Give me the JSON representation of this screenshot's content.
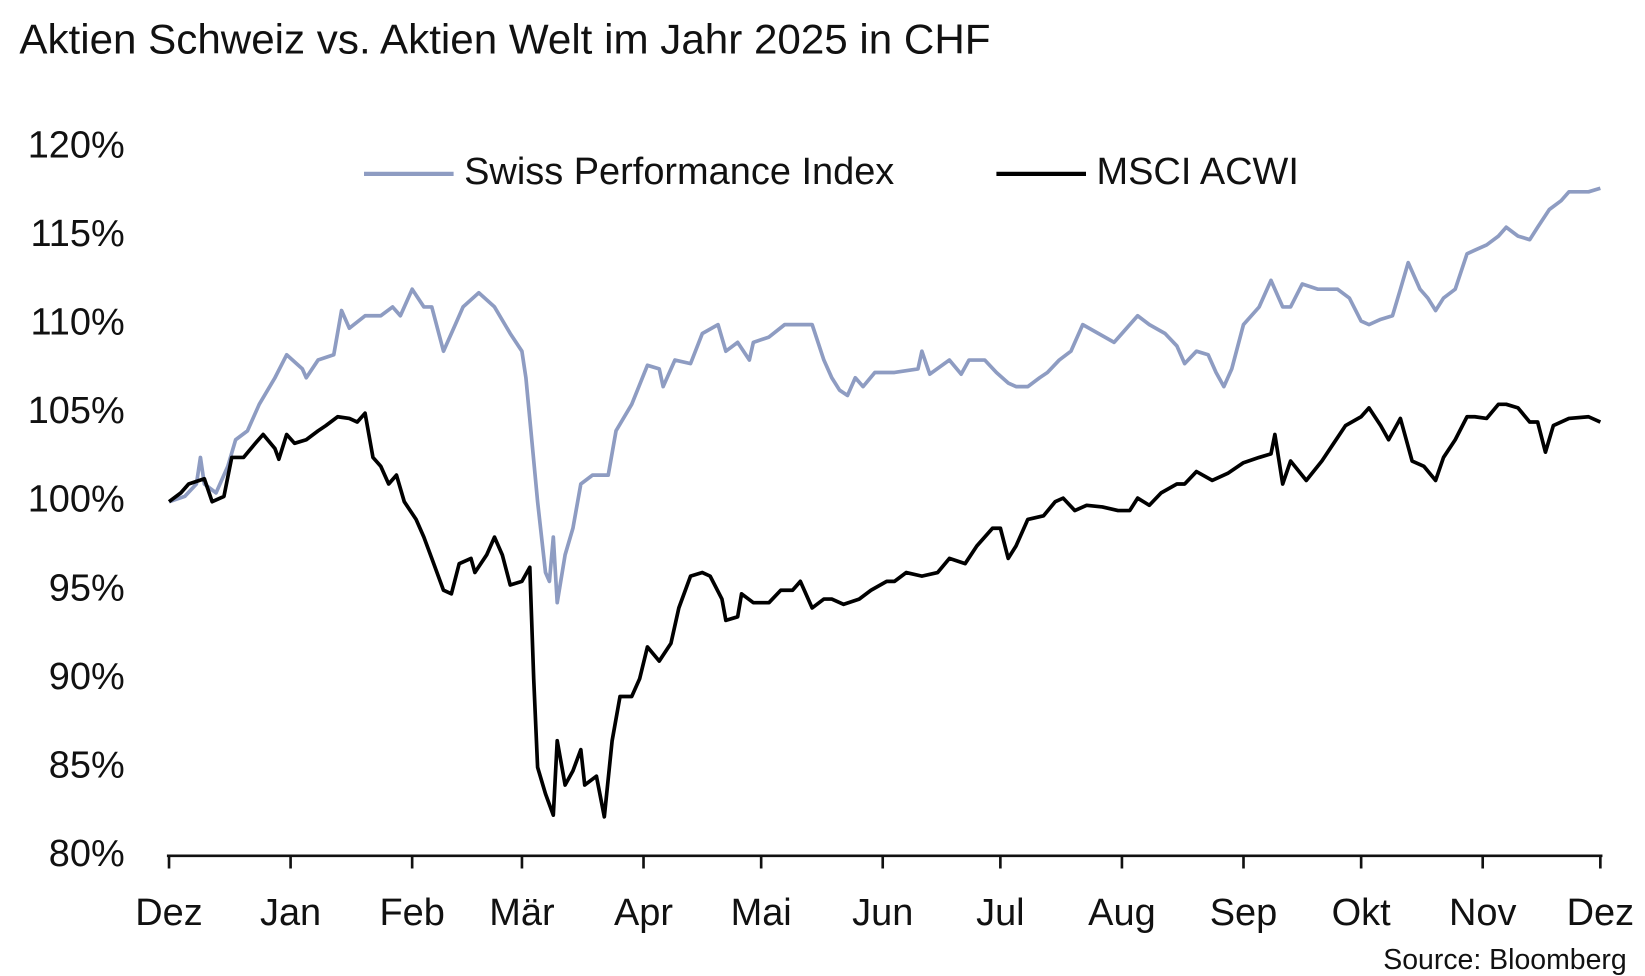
{
  "chart_data": {
    "type": "line",
    "title": "Aktien Schweiz vs. Aktien Welt im Jahr 2025 in CHF",
    "source": "Source: Bloomberg",
    "xlim": [
      0,
      365
    ],
    "xticks": [
      {
        "value": 0,
        "label": "Dez"
      },
      {
        "value": 31,
        "label": "Jan"
      },
      {
        "value": 62,
        "label": "Feb"
      },
      {
        "value": 90,
        "label": "Mär"
      },
      {
        "value": 121,
        "label": "Apr"
      },
      {
        "value": 151,
        "label": "Mai"
      },
      {
        "value": 182,
        "label": "Jun"
      },
      {
        "value": 212,
        "label": "Jul"
      },
      {
        "value": 243,
        "label": "Aug"
      },
      {
        "value": 274,
        "label": "Sep"
      },
      {
        "value": 304,
        "label": "Okt"
      },
      {
        "value": 335,
        "label": "Nov"
      },
      {
        "value": 365,
        "label": "Dez"
      }
    ],
    "ylim": [
      80,
      120
    ],
    "yticks": [
      {
        "value": 80,
        "label": "80%"
      },
      {
        "value": 85,
        "label": "85%"
      },
      {
        "value": 90,
        "label": "90%"
      },
      {
        "value": 95,
        "label": "95%"
      },
      {
        "value": 100,
        "label": "100%"
      },
      {
        "value": 105,
        "label": "105%"
      },
      {
        "value": 110,
        "label": "110%"
      },
      {
        "value": 115,
        "label": "115%"
      },
      {
        "value": 120,
        "label": "120%"
      }
    ],
    "grid": false,
    "legend": "top",
    "series": [
      {
        "name": "Swiss Performance Index",
        "color": "#8e9cc2",
        "x": [
          0,
          4,
          7,
          8,
          9,
          12,
          15,
          17,
          20,
          23,
          27,
          30,
          34,
          35,
          38,
          42,
          44,
          46,
          50,
          54,
          57,
          59,
          62,
          65,
          67,
          70,
          73,
          75,
          79,
          83,
          87,
          90,
          91,
          94,
          96,
          97,
          98,
          99,
          101,
          103,
          105,
          108,
          112,
          114,
          118,
          122,
          125,
          126,
          129,
          133,
          136,
          140,
          142,
          145,
          148,
          149,
          153,
          157,
          164,
          167,
          169,
          171,
          173,
          175,
          177,
          180,
          185,
          191,
          192,
          194,
          199,
          202,
          204,
          208,
          211,
          214,
          216,
          219,
          222,
          224,
          227,
          230,
          233,
          237,
          241,
          243,
          247,
          250,
          254,
          257,
          259,
          262,
          265,
          267,
          269,
          271,
          274,
          278,
          281,
          284,
          286,
          289,
          293,
          298,
          301,
          304,
          306,
          309,
          312,
          314,
          316,
          319,
          321,
          323,
          325,
          328,
          331,
          333,
          336,
          339,
          341,
          344,
          347,
          349,
          352,
          355,
          357,
          362,
          365
        ],
        "values": [
          100,
          100.3,
          101,
          102.5,
          101,
          100.5,
          102,
          103.5,
          104,
          105.5,
          107,
          108.3,
          107.5,
          107,
          108,
          108.3,
          110.8,
          109.8,
          110.5,
          110.5,
          111,
          110.5,
          112,
          111,
          111,
          108.5,
          110,
          111,
          111.8,
          111,
          109.5,
          108.5,
          107,
          100,
          96,
          95.5,
          98,
          94.3,
          97,
          98.5,
          101,
          101.5,
          101.5,
          104,
          105.5,
          107.7,
          107.5,
          106.5,
          108,
          107.8,
          109.5,
          110,
          108.5,
          109,
          108,
          109,
          109.3,
          110,
          110,
          108,
          107,
          106.3,
          106,
          107,
          106.5,
          107.3,
          107.3,
          107.5,
          108.5,
          107.2,
          108,
          107.2,
          108,
          108,
          107.3,
          106.7,
          106.5,
          106.5,
          107,
          107.3,
          108,
          108.5,
          110,
          109.5,
          109,
          109.5,
          110.5,
          110,
          109.5,
          108.8,
          107.8,
          108.5,
          108.3,
          107.3,
          106.5,
          107.5,
          110,
          111,
          112.5,
          111,
          111,
          112.3,
          112,
          112,
          111.5,
          110.2,
          110,
          110.3,
          110.5,
          112,
          113.5,
          112,
          111.5,
          110.8,
          111.5,
          112,
          114,
          114.2,
          114.5,
          115,
          115.5,
          115,
          114.8,
          115.5,
          116.5,
          117,
          117.5,
          117.5,
          117.7
        ]
      },
      {
        "name": "MSCI ACWI",
        "color": "#000000",
        "x": [
          0,
          3,
          5,
          9,
          11,
          14,
          16,
          19,
          22,
          24,
          27,
          28,
          30,
          32,
          35,
          38,
          40,
          43,
          46,
          48,
          50,
          52,
          54,
          56,
          58,
          60,
          63,
          65,
          67,
          70,
          72,
          74,
          77,
          78,
          81,
          83,
          85,
          87,
          90,
          92,
          93,
          94,
          96,
          98,
          99,
          101,
          103,
          105,
          106,
          109,
          111,
          113,
          115,
          118,
          120,
          122,
          125,
          128,
          130,
          133,
          136,
          138,
          141,
          142,
          145,
          146,
          149,
          153,
          156,
          159,
          161,
          164,
          167,
          169,
          172,
          176,
          179,
          183,
          185,
          188,
          192,
          196,
          199,
          203,
          206,
          210,
          212,
          214,
          216,
          219,
          223,
          226,
          228,
          231,
          234,
          238,
          242,
          245,
          247,
          250,
          253,
          257,
          259,
          262,
          266,
          270,
          274,
          278,
          281,
          282,
          284,
          286,
          290,
          294,
          297,
          300,
          304,
          306,
          309,
          311,
          314,
          317,
          320,
          323,
          325,
          328,
          331,
          333,
          336,
          339,
          341,
          344,
          347,
          349,
          351,
          353,
          357,
          362,
          365
        ],
        "values": [
          100,
          100.5,
          101,
          101.3,
          100,
          100.3,
          102.5,
          102.5,
          103.3,
          103.8,
          103,
          102.4,
          103.8,
          103.3,
          103.5,
          104,
          104.3,
          104.8,
          104.7,
          104.5,
          105,
          102.5,
          102,
          101,
          101.5,
          100,
          99,
          98,
          96.8,
          95,
          94.8,
          96.5,
          96.8,
          96,
          97,
          98,
          97,
          95.3,
          95.5,
          96.3,
          90,
          85,
          83.5,
          82.3,
          86.5,
          84,
          84.8,
          86,
          84,
          84.5,
          82.2,
          86.5,
          89,
          89,
          90,
          91.8,
          91,
          92,
          94,
          95.8,
          96,
          95.8,
          94.5,
          93.3,
          93.5,
          94.8,
          94.3,
          94.3,
          95,
          95,
          95.5,
          94,
          94.5,
          94.5,
          94.2,
          94.5,
          95,
          95.5,
          95.5,
          96,
          95.8,
          96,
          96.8,
          96.5,
          97.5,
          98.5,
          98.5,
          96.8,
          97.5,
          99,
          99.2,
          100,
          100.2,
          99.5,
          99.8,
          99.7,
          99.5,
          99.5,
          100.2,
          99.8,
          100.5,
          101,
          101,
          101.7,
          101.2,
          101.6,
          102.2,
          102.5,
          102.7,
          103.8,
          101,
          102.3,
          101.2,
          102.3,
          103.3,
          104.3,
          104.8,
          105.3,
          104.3,
          103.5,
          104.7,
          102.3,
          102,
          101.2,
          102.5,
          103.5,
          104.8,
          104.8,
          104.7,
          105.5,
          105.5,
          105.3,
          104.5,
          104.5,
          102.8,
          104.3,
          104.7,
          104.8,
          104.5
        ]
      }
    ]
  }
}
